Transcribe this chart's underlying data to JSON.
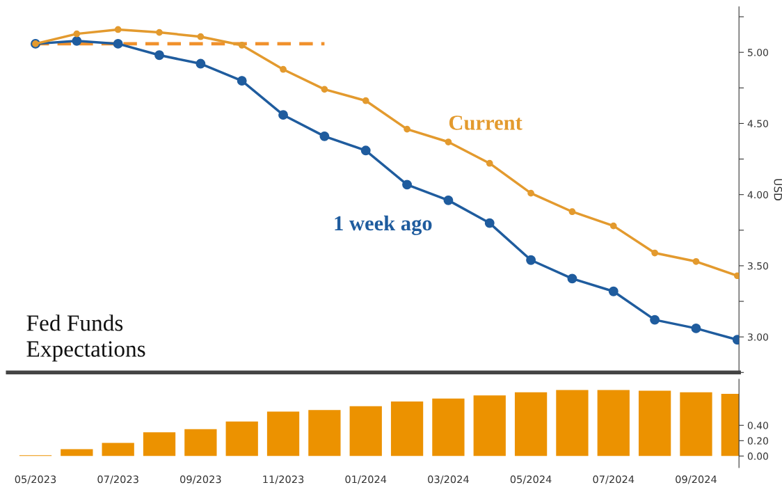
{
  "chart_data": [
    {
      "type": "line",
      "title": "Fed Funds\nExpectations",
      "ylabel": "USD",
      "categories": [
        null,
        null,
        null,
        null,
        null,
        null,
        null,
        null,
        null,
        null,
        null,
        null,
        null,
        null,
        null,
        null,
        null,
        null
      ],
      "series": [
        {
          "name": "Current",
          "color": "#e39a2e",
          "marker": "circle",
          "values": [
            5.06,
            5.13,
            5.16,
            5.14,
            5.11,
            5.05,
            4.88,
            4.74,
            4.66,
            4.46,
            4.37,
            4.22,
            4.01,
            3.88,
            3.78,
            3.59,
            3.53,
            3.43
          ]
        },
        {
          "name": "1 week ago",
          "color": "#1f5c9e",
          "marker": "circle",
          "values": [
            5.06,
            5.08,
            5.06,
            4.98,
            4.92,
            4.8,
            4.56,
            4.41,
            4.31,
            4.07,
            3.96,
            3.8,
            3.54,
            3.41,
            3.32,
            3.12,
            3.06,
            2.98
          ]
        },
        {
          "color": "#f0912c",
          "line_style": "dashed",
          "marker": "none",
          "values": [
            5.06,
            5.06,
            5.06,
            5.06,
            5.06,
            5.06,
            5.06,
            5.06,
            null,
            null,
            null,
            null,
            null,
            null,
            null,
            null,
            null,
            null
          ]
        }
      ],
      "ylim": [
        2.75,
        5.32
      ],
      "yticks": [
        {
          "value": 2.75,
          "label": null
        },
        {
          "value": 3.0,
          "label": "3.00"
        },
        {
          "value": 3.25,
          "label": null
        },
        {
          "value": 3.5,
          "label": "3.50"
        },
        {
          "value": 3.75,
          "label": null
        },
        {
          "value": 4.0,
          "label": "4.00"
        },
        {
          "value": 4.25,
          "label": null
        },
        {
          "value": 4.5,
          "label": "4.50"
        },
        {
          "value": 4.75,
          "label": null
        },
        {
          "value": 5.0,
          "label": "5.00"
        },
        {
          "value": 5.25,
          "label": null
        }
      ],
      "tick_labels": "y",
      "grid": false,
      "legend": false
    },
    {
      "type": "bar",
      "categories": [
        "05/2023",
        null,
        "07/2023",
        null,
        "09/2023",
        null,
        "11/2023",
        null,
        "01/2024",
        null,
        "03/2024",
        null,
        "05/2024",
        null,
        "07/2024",
        null,
        "09/2024",
        null
      ],
      "values": [
        0.01,
        0.09,
        0.17,
        0.31,
        0.35,
        0.45,
        0.58,
        0.6,
        0.65,
        0.71,
        0.75,
        0.79,
        0.83,
        0.86,
        0.86,
        0.85,
        0.83,
        0.81
      ],
      "color": "#ec9200",
      "ylim": [
        -0.15,
        1.0
      ],
      "yticks": [
        {
          "value": 0.0,
          "label": "0.00"
        },
        {
          "value": 0.2,
          "label": "0.20"
        },
        {
          "value": 0.4,
          "label": "0.40"
        }
      ],
      "grid": false,
      "legend": false
    }
  ]
}
